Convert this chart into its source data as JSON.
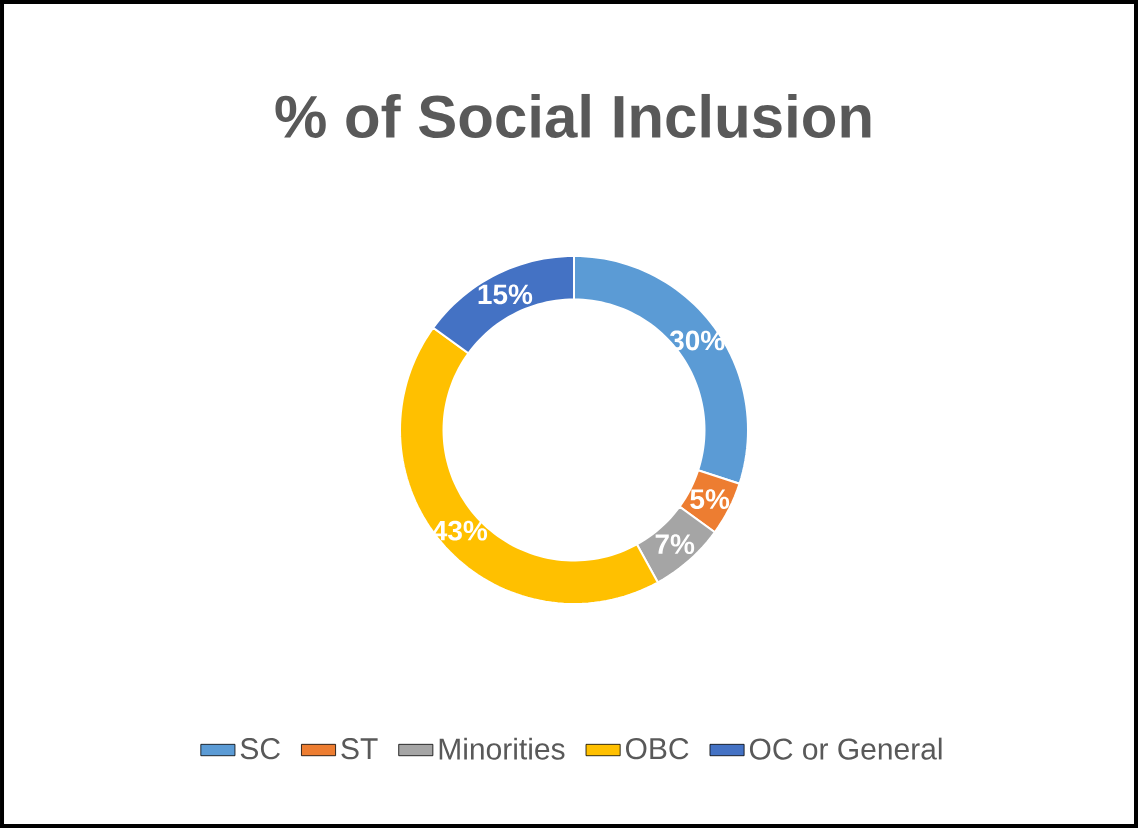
{
  "chart_data": {
    "type": "donut",
    "title": "% of Social Inclusion",
    "categories": [
      "SC",
      "ST",
      "Minorities",
      "OBC",
      "OC or General"
    ],
    "values": [
      30,
      5,
      7,
      43,
      15
    ],
    "value_labels": [
      "30%",
      "5%",
      "7%",
      "43%",
      "15%"
    ],
    "colors": [
      "#5b9bd5",
      "#ed7d31",
      "#a5a5a5",
      "#ffc000",
      "#4472c4"
    ],
    "legend": "bottom"
  }
}
